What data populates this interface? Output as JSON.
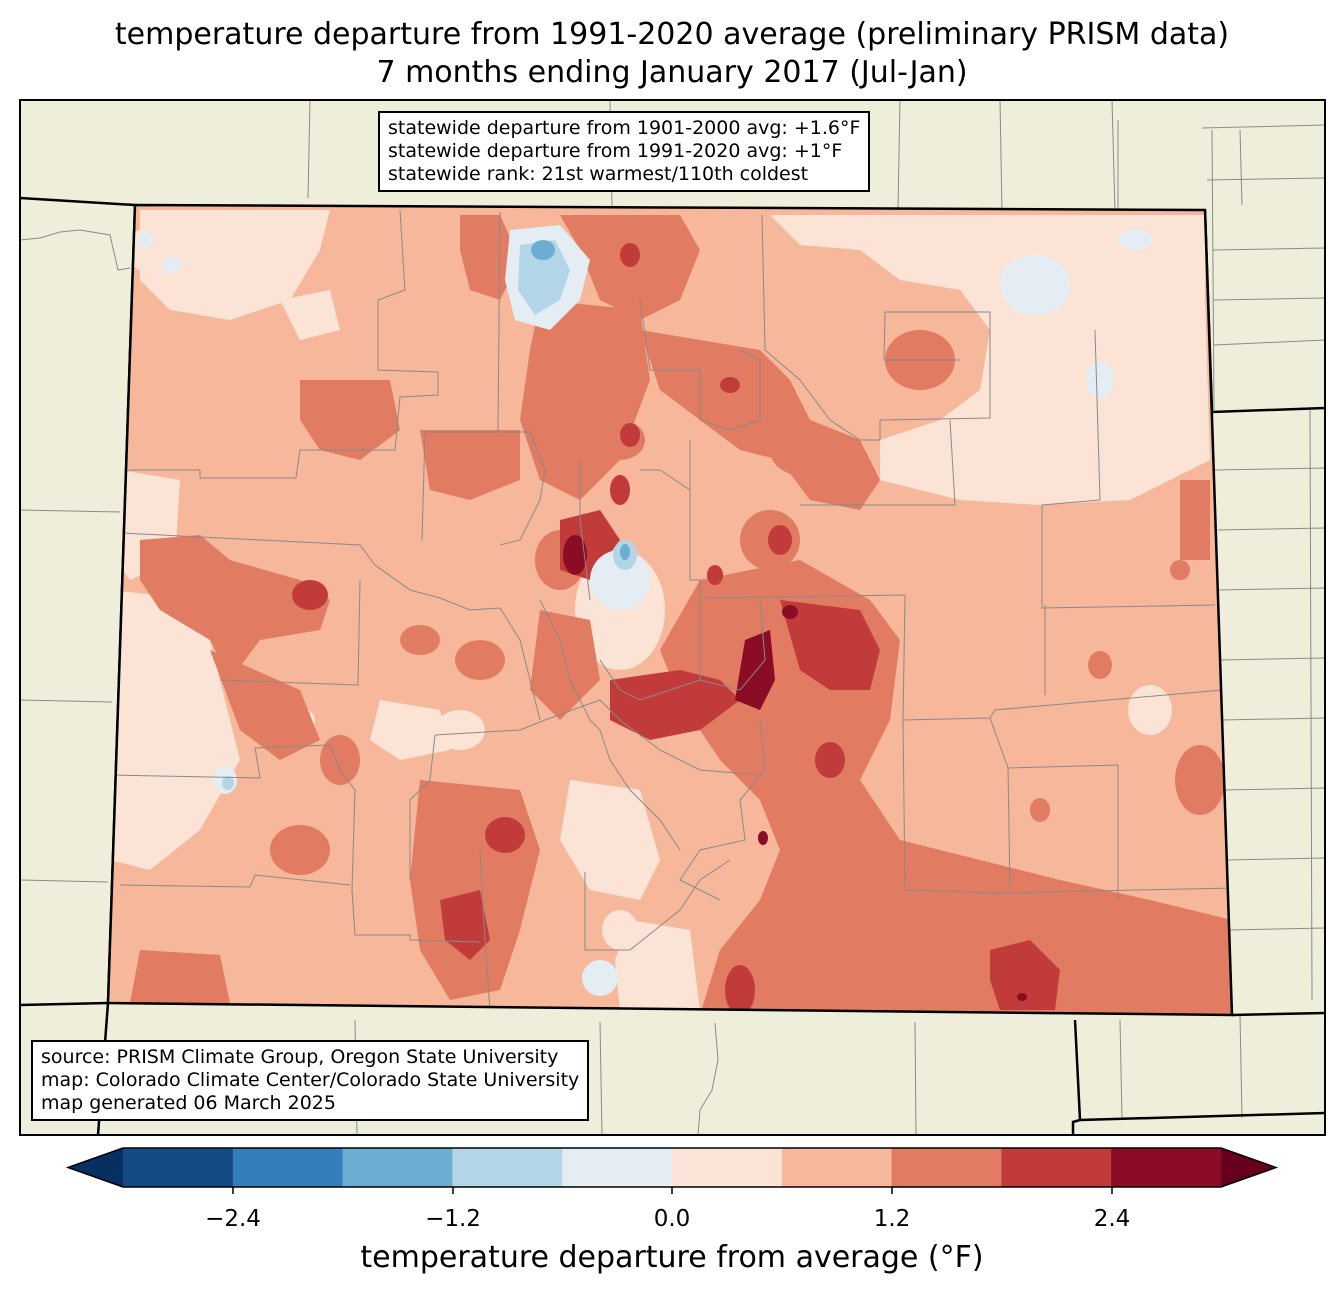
{
  "title": {
    "line1": "temperature departure from 1991-2020 average (preliminary PRISM data)",
    "line2": "7 months ending January 2017 (Jul-Jan)"
  },
  "stats": {
    "line1": "statewide departure from 1901-2000 avg: +1.6°F",
    "line2": "statewide departure from 1991-2020 avg: +1°F",
    "line3": "statewide rank: 21st warmest/110th coldest"
  },
  "source": {
    "line1": "source: PRISM Climate Group, Oregon State University",
    "line2": "map: Colorado Climate Center/Colorado State University",
    "line3": "map generated 06 March 2025"
  },
  "colorbar": {
    "label": "temperature departure from average (°F)",
    "ticks": [
      "−2.4",
      "−1.2",
      "0.0",
      "1.2",
      "2.4"
    ],
    "colors": [
      "#053061",
      "#154a85",
      "#327fbb",
      "#6cadd2",
      "#b2d5e7",
      "#e4edf4",
      "#fbe4d6",
      "#f6b79b",
      "#e17b62",
      "#c23b3b",
      "#8b0d25",
      "#67001f"
    ]
  },
  "map_colors": {
    "land": "#efeedb",
    "ocean_bg": "#ffffff"
  }
}
